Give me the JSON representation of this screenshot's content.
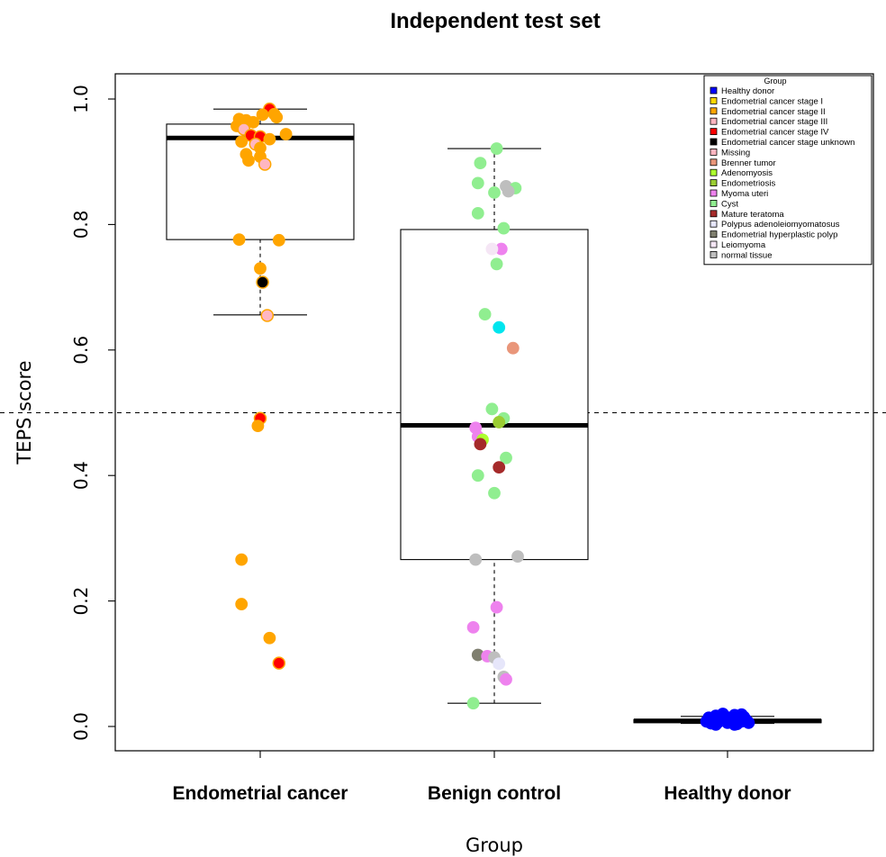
{
  "chart_data": {
    "type": "box",
    "title": "Independent test set",
    "xlabel": "Group",
    "ylabel": "TEPS score",
    "ylim": [
      -0.04,
      1.04
    ],
    "yticks": [
      0.0,
      0.2,
      0.4,
      0.6,
      0.8,
      1.0
    ],
    "ytick_labels": [
      "0.0",
      "0.2",
      "0.4",
      "0.6",
      "0.8",
      "1.0"
    ],
    "threshold": 0.5,
    "categories": [
      "Endometrial cancer",
      "Benign control",
      "Healthy donor"
    ],
    "boxes": [
      {
        "whisker_low": 0.656,
        "q1": 0.776,
        "median": 0.938,
        "q3": 0.96,
        "whisker_high": 0.984
      },
      {
        "whisker_low": 0.037,
        "q1": 0.266,
        "median": 0.48,
        "q3": 0.792,
        "whisker_high": 0.921
      },
      {
        "whisker_low": 0.005,
        "q1": 0.006,
        "median": 0.009,
        "q3": 0.011,
        "whisker_high": 0.016
      }
    ],
    "legend": {
      "title": "Group",
      "position": "top-right",
      "items": [
        {
          "label": "Healthy donor",
          "color": "#0000ff"
        },
        {
          "label": "Endometrial cancer stage I",
          "color": "#ffd700"
        },
        {
          "label": "Endometrial cancer stage II",
          "color": "#ffa500"
        },
        {
          "label": "Endometrial cancer stage III",
          "color": "#ffb6c1"
        },
        {
          "label": "Endometrial cancer stage IV",
          "color": "#ff0000"
        },
        {
          "label": "Endometrial cancer stage unknown",
          "color": "#000000"
        },
        {
          "label": "Missing",
          "color": "#ffb6c1"
        },
        {
          "label": "Brenner tumor",
          "color": "#e9967a"
        },
        {
          "label": "Adenomyosis",
          "color": "#adff2f"
        },
        {
          "label": "Endometriosis",
          "color": "#9acd32"
        },
        {
          "label": "Myoma uteri",
          "color": "#ee82ee"
        },
        {
          "label": "Cyst",
          "color": "#90ee90"
        },
        {
          "label": "Mature teratoma",
          "color": "#a52a2a"
        },
        {
          "label": "Polypus adenoleiomyomatosus",
          "color": "#e6e6fa"
        },
        {
          "label": "Endometrial hyperplastic polyp",
          "color": "#7f7f6f"
        },
        {
          "label": "Leiomyoma",
          "color": "#f5e6f5"
        },
        {
          "label": "normal tissue",
          "color": "#bebebe"
        }
      ]
    },
    "points": [
      {
        "group": 0,
        "jitter": 0.04,
        "y": 0.984,
        "color": "#ff0000",
        "border": "#ffa500"
      },
      {
        "group": 0,
        "jitter": 0.06,
        "y": 0.976,
        "color": "#ffa500"
      },
      {
        "group": 0,
        "jitter": 0.01,
        "y": 0.975,
        "color": "#ffa500"
      },
      {
        "group": 0,
        "jitter": 0.07,
        "y": 0.971,
        "color": "#ffa500"
      },
      {
        "group": 0,
        "jitter": -0.09,
        "y": 0.968,
        "color": "#ffa500"
      },
      {
        "group": 0,
        "jitter": -0.06,
        "y": 0.966,
        "color": "#ffa500"
      },
      {
        "group": 0,
        "jitter": -0.03,
        "y": 0.963,
        "color": "#ffa500"
      },
      {
        "group": 0,
        "jitter": -0.1,
        "y": 0.957,
        "color": "#ffa500"
      },
      {
        "group": 0,
        "jitter": -0.07,
        "y": 0.952,
        "color": "#ffb6c1",
        "border": "#ffa500"
      },
      {
        "group": 0,
        "jitter": 0.11,
        "y": 0.944,
        "color": "#ffa500"
      },
      {
        "group": 0,
        "jitter": -0.04,
        "y": 0.942,
        "color": "#ff0000",
        "border": "#ffa500"
      },
      {
        "group": 0,
        "jitter": 0.0,
        "y": 0.94,
        "color": "#ff0000",
        "border": "#ffa500"
      },
      {
        "group": 0,
        "jitter": 0.04,
        "y": 0.936,
        "color": "#ffa500"
      },
      {
        "group": 0,
        "jitter": -0.08,
        "y": 0.932,
        "color": "#ffa500"
      },
      {
        "group": 0,
        "jitter": -0.02,
        "y": 0.928,
        "color": "#ffb6c1",
        "border": "#ffa500"
      },
      {
        "group": 0,
        "jitter": 0.0,
        "y": 0.922,
        "color": "#ffa500"
      },
      {
        "group": 0,
        "jitter": -0.06,
        "y": 0.912,
        "color": "#ffa500"
      },
      {
        "group": 0,
        "jitter": 0.0,
        "y": 0.908,
        "color": "#ffa500"
      },
      {
        "group": 0,
        "jitter": -0.05,
        "y": 0.902,
        "color": "#ffa500"
      },
      {
        "group": 0,
        "jitter": 0.02,
        "y": 0.896,
        "color": "#ffb6c1",
        "border": "#ffa500"
      },
      {
        "group": 0,
        "jitter": -0.09,
        "y": 0.776,
        "color": "#ffa500"
      },
      {
        "group": 0,
        "jitter": 0.08,
        "y": 0.775,
        "color": "#ffa500"
      },
      {
        "group": 0,
        "jitter": 0.0,
        "y": 0.73,
        "color": "#ffa500"
      },
      {
        "group": 0,
        "jitter": 0.01,
        "y": 0.708,
        "color": "#000000",
        "border": "#ffa500"
      },
      {
        "group": 0,
        "jitter": 0.03,
        "y": 0.655,
        "color": "#ffb6c1",
        "border": "#ffa500"
      },
      {
        "group": 0,
        "jitter": 0.0,
        "y": 0.491,
        "color": "#ff0000",
        "border": "#ffa500"
      },
      {
        "group": 0,
        "jitter": -0.01,
        "y": 0.479,
        "color": "#ffa500"
      },
      {
        "group": 0,
        "jitter": -0.08,
        "y": 0.266,
        "color": "#ffa500"
      },
      {
        "group": 0,
        "jitter": -0.08,
        "y": 0.195,
        "color": "#ffa500"
      },
      {
        "group": 0,
        "jitter": 0.04,
        "y": 0.141,
        "color": "#ffa500"
      },
      {
        "group": 0,
        "jitter": 0.08,
        "y": 0.101,
        "color": "#ff0000",
        "border": "#ffa500"
      },
      {
        "group": 1,
        "jitter": 0.01,
        "y": 0.921,
        "color": "#90ee90"
      },
      {
        "group": 1,
        "jitter": -0.06,
        "y": 0.898,
        "color": "#90ee90"
      },
      {
        "group": 1,
        "jitter": -0.07,
        "y": 0.866,
        "color": "#90ee90"
      },
      {
        "group": 1,
        "jitter": 0.05,
        "y": 0.861,
        "color": "#bebebe"
      },
      {
        "group": 1,
        "jitter": 0.09,
        "y": 0.858,
        "color": "#90ee90"
      },
      {
        "group": 1,
        "jitter": 0.06,
        "y": 0.853,
        "color": "#bebebe"
      },
      {
        "group": 1,
        "jitter": 0.0,
        "y": 0.851,
        "color": "#90ee90"
      },
      {
        "group": 1,
        "jitter": -0.07,
        "y": 0.818,
        "color": "#90ee90"
      },
      {
        "group": 1,
        "jitter": 0.04,
        "y": 0.794,
        "color": "#90ee90"
      },
      {
        "group": 1,
        "jitter": 0.03,
        "y": 0.761,
        "color": "#ee82ee"
      },
      {
        "group": 1,
        "jitter": -0.01,
        "y": 0.761,
        "color": "#f5e6f5"
      },
      {
        "group": 1,
        "jitter": 0.01,
        "y": 0.737,
        "color": "#90ee90"
      },
      {
        "group": 1,
        "jitter": -0.04,
        "y": 0.657,
        "color": "#90ee90"
      },
      {
        "group": 1,
        "jitter": 0.02,
        "y": 0.636,
        "color": "#00e5ee"
      },
      {
        "group": 1,
        "jitter": 0.08,
        "y": 0.603,
        "color": "#e9967a"
      },
      {
        "group": 1,
        "jitter": -0.01,
        "y": 0.506,
        "color": "#90ee90"
      },
      {
        "group": 1,
        "jitter": 0.04,
        "y": 0.491,
        "color": "#90ee90"
      },
      {
        "group": 1,
        "jitter": 0.02,
        "y": 0.485,
        "color": "#9acd32"
      },
      {
        "group": 1,
        "jitter": -0.08,
        "y": 0.476,
        "color": "#ee82ee"
      },
      {
        "group": 1,
        "jitter": -0.07,
        "y": 0.462,
        "color": "#ee82ee"
      },
      {
        "group": 1,
        "jitter": -0.05,
        "y": 0.457,
        "color": "#adff2f"
      },
      {
        "group": 1,
        "jitter": -0.06,
        "y": 0.45,
        "color": "#a52a2a"
      },
      {
        "group": 1,
        "jitter": 0.05,
        "y": 0.428,
        "color": "#90ee90"
      },
      {
        "group": 1,
        "jitter": 0.02,
        "y": 0.413,
        "color": "#a52a2a"
      },
      {
        "group": 1,
        "jitter": -0.07,
        "y": 0.4,
        "color": "#90ee90"
      },
      {
        "group": 1,
        "jitter": 0.0,
        "y": 0.372,
        "color": "#90ee90"
      },
      {
        "group": 1,
        "jitter": 0.1,
        "y": 0.271,
        "color": "#bebebe"
      },
      {
        "group": 1,
        "jitter": -0.08,
        "y": 0.266,
        "color": "#bebebe"
      },
      {
        "group": 1,
        "jitter": 0.01,
        "y": 0.19,
        "color": "#ee82ee"
      },
      {
        "group": 1,
        "jitter": -0.09,
        "y": 0.158,
        "color": "#ee82ee"
      },
      {
        "group": 1,
        "jitter": -0.07,
        "y": 0.114,
        "color": "#7f7f6f"
      },
      {
        "group": 1,
        "jitter": -0.03,
        "y": 0.112,
        "color": "#ee82ee"
      },
      {
        "group": 1,
        "jitter": 0.0,
        "y": 0.11,
        "color": "#bebebe"
      },
      {
        "group": 1,
        "jitter": 0.02,
        "y": 0.1,
        "color": "#e6e6fa"
      },
      {
        "group": 1,
        "jitter": 0.04,
        "y": 0.079,
        "color": "#bebebe"
      },
      {
        "group": 1,
        "jitter": 0.05,
        "y": 0.075,
        "color": "#ee82ee"
      },
      {
        "group": 1,
        "jitter": -0.09,
        "y": 0.037,
        "color": "#90ee90"
      },
      {
        "group": 2,
        "jitter": -0.09,
        "y": 0.008,
        "color": "#0000ff"
      },
      {
        "group": 2,
        "jitter": -0.08,
        "y": 0.014,
        "color": "#0000ff"
      },
      {
        "group": 2,
        "jitter": -0.07,
        "y": 0.005,
        "color": "#0000ff"
      },
      {
        "group": 2,
        "jitter": -0.06,
        "y": 0.011,
        "color": "#0000ff"
      },
      {
        "group": 2,
        "jitter": -0.05,
        "y": 0.017,
        "color": "#0000ff"
      },
      {
        "group": 2,
        "jitter": -0.04,
        "y": 0.007,
        "color": "#0000ff"
      },
      {
        "group": 2,
        "jitter": -0.03,
        "y": 0.013,
        "color": "#0000ff"
      },
      {
        "group": 2,
        "jitter": -0.02,
        "y": 0.01,
        "color": "#0000ff"
      },
      {
        "group": 2,
        "jitter": -0.01,
        "y": 0.016,
        "color": "#0000ff"
      },
      {
        "group": 2,
        "jitter": 0.0,
        "y": 0.006,
        "color": "#0000ff"
      },
      {
        "group": 2,
        "jitter": 0.01,
        "y": 0.012,
        "color": "#0000ff"
      },
      {
        "group": 2,
        "jitter": 0.02,
        "y": 0.009,
        "color": "#0000ff"
      },
      {
        "group": 2,
        "jitter": 0.03,
        "y": 0.018,
        "color": "#0000ff"
      },
      {
        "group": 2,
        "jitter": 0.04,
        "y": 0.004,
        "color": "#0000ff"
      },
      {
        "group": 2,
        "jitter": 0.05,
        "y": 0.012,
        "color": "#0000ff"
      },
      {
        "group": 2,
        "jitter": 0.06,
        "y": 0.008,
        "color": "#0000ff"
      },
      {
        "group": 2,
        "jitter": 0.07,
        "y": 0.015,
        "color": "#0000ff"
      },
      {
        "group": 2,
        "jitter": 0.08,
        "y": 0.01,
        "color": "#0000ff"
      },
      {
        "group": 2,
        "jitter": 0.09,
        "y": 0.006,
        "color": "#0000ff"
      },
      {
        "group": 2,
        "jitter": -0.05,
        "y": 0.003,
        "color": "#0000ff"
      },
      {
        "group": 2,
        "jitter": 0.03,
        "y": 0.003,
        "color": "#0000ff"
      },
      {
        "group": 2,
        "jitter": -0.02,
        "y": 0.02,
        "color": "#0000ff"
      },
      {
        "group": 2,
        "jitter": 0.06,
        "y": 0.019,
        "color": "#0000ff"
      }
    ]
  }
}
